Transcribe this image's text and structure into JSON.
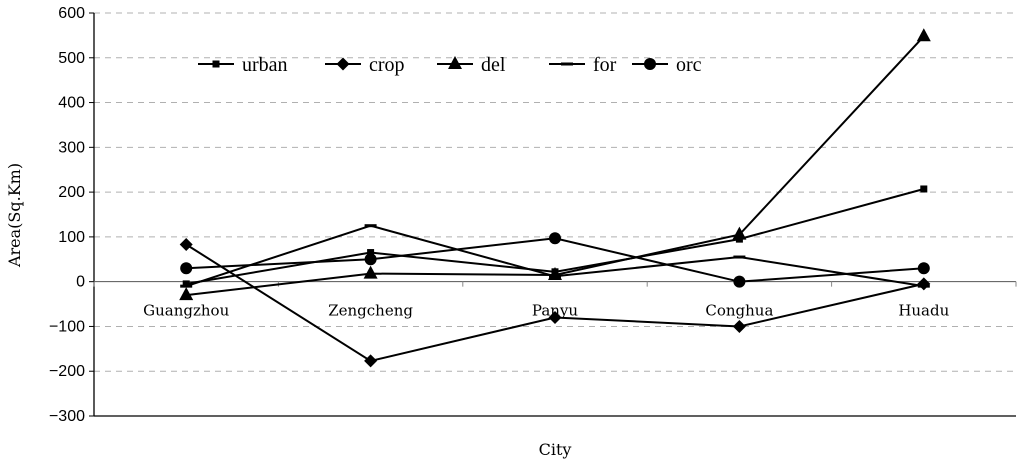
{
  "chart_data": {
    "type": "line",
    "title": "",
    "xlabel": "City",
    "ylabel": "Area(Sq.Km)",
    "categories": [
      "Guangzhou",
      "Zengcheng",
      "Panyu",
      "Conghua",
      "Huadu"
    ],
    "ylim": [
      -300,
      600
    ],
    "yticks": [
      -300,
      -200,
      -100,
      0,
      100,
      200,
      300,
      400,
      500,
      600
    ],
    "grid": true,
    "legend_position": "top",
    "series": [
      {
        "name": "urban",
        "marker": "square",
        "values": [
          -5,
          65,
          22,
          95,
          207
        ]
      },
      {
        "name": "crop",
        "marker": "diamond",
        "values": [
          83,
          -177,
          -80,
          -100,
          -5
        ]
      },
      {
        "name": "del",
        "marker": "triangle",
        "values": [
          -30,
          18,
          15,
          105,
          548
        ]
      },
      {
        "name": "for",
        "marker": "dash",
        "values": [
          -10,
          125,
          12,
          55,
          -10
        ]
      },
      {
        "name": "orc",
        "marker": "circle",
        "values": [
          30,
          50,
          97,
          0,
          30
        ]
      }
    ]
  }
}
